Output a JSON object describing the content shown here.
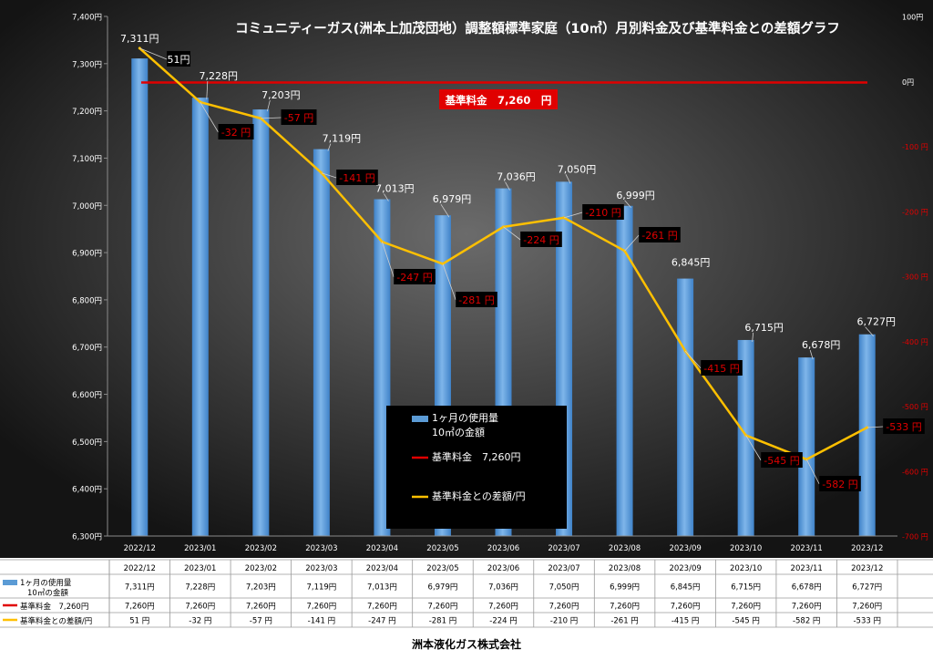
{
  "chart_data": {
    "type": "bar",
    "title": "コミュニティーガス(洲本上加茂団地）調整額標準家庭（10㎥）月別料金及び基準料金との差額グラフ",
    "categories": [
      "2022/12",
      "2023/01",
      "2023/02",
      "2023/03",
      "2023/04",
      "2023/05",
      "2023/06",
      "2023/07",
      "2023/08",
      "2023/09",
      "2023/10",
      "2023/11",
      "2023/12"
    ],
    "series": [
      {
        "name": "1ヶ月の使用量 10㎥の金額",
        "type": "bar",
        "axis": "left",
        "color": "#5b9bd5",
        "values": [
          7311,
          7228,
          7203,
          7119,
          7013,
          6979,
          7036,
          7050,
          6999,
          6845,
          6715,
          6678,
          6727
        ],
        "labels": [
          "7,311円",
          "7,228円",
          "7,203円",
          "7,119円",
          "7,013円",
          "6,979円",
          "7,036円",
          "7,050円",
          "6,999円",
          "6,845円",
          "6,715円",
          "6,678円",
          "6,727円"
        ]
      },
      {
        "name": "基準料金 7,260円",
        "type": "line",
        "axis": "left",
        "color": "#e00000",
        "values": [
          7260,
          7260,
          7260,
          7260,
          7260,
          7260,
          7260,
          7260,
          7260,
          7260,
          7260,
          7260,
          7260
        ],
        "labels": [
          "7,260円",
          "7,260円",
          "7,260円",
          "7,260円",
          "7,260円",
          "7,260円",
          "7,260円",
          "7,260円",
          "7,260円",
          "7,260円",
          "7,260円",
          "7,260円",
          "7,260円"
        ]
      },
      {
        "name": "基準料金との差額/円",
        "type": "line",
        "axis": "right",
        "color": "#ffc000",
        "values": [
          51,
          -32,
          -57,
          -141,
          -247,
          -281,
          -224,
          -210,
          -261,
          -415,
          -545,
          -582,
          -533
        ],
        "labels": [
          "51円",
          "-32 円",
          "-57 円",
          "-141 円",
          "-247 円",
          "-281 円",
          "-224 円",
          "-210 円",
          "-261 円",
          "-415 円",
          "-545 円",
          "-582 円",
          "-533 円"
        ]
      }
    ],
    "left_axis": {
      "ylim": [
        6300,
        7400
      ],
      "ticks": [
        "6,300円",
        "6,400円",
        "6,500円",
        "6,600円",
        "6,700円",
        "6,800円",
        "6,900円",
        "7,000円",
        "7,100円",
        "7,200円",
        "7,300円",
        "7,400円"
      ]
    },
    "right_axis": {
      "ylim": [
        -700,
        100
      ],
      "ticks": [
        "-700 円",
        "-600 円",
        "-500 円",
        "-400 円",
        "-300 円",
        "-200 円",
        "-100 円",
        "0円",
        "100円"
      ]
    },
    "chart_label_values": [
      "51円",
      "-32 円",
      "-57 円",
      "-141 円",
      "-247 円",
      "-281 円",
      "-224 円",
      "-210 円",
      "-261 円",
      "-415 円",
      "-545 円",
      "-582 円",
      "-533 円"
    ],
    "base_fee_badge": "基準料金　7,260　円",
    "legend": {
      "position": "center-bottom",
      "items": [
        {
          "label_lines": [
            "1ヶ月の使用量",
            "10㎥の金額"
          ],
          "color": "#5b9bd5",
          "kind": "bar"
        },
        {
          "label_lines": [
            "基準料金　7,260円"
          ],
          "color": "#e00000",
          "kind": "line"
        },
        {
          "label_lines": [
            "基準料金との差額/円"
          ],
          "color": "#ffc000",
          "kind": "line"
        }
      ]
    },
    "data_table": {
      "rows": [
        {
          "label_lines": [
            "1ヶ月の使用量",
            "10㎥の金額"
          ],
          "color": "#5b9bd5",
          "kind": "bar",
          "cells": [
            "7,311円",
            "7,228円",
            "7,203円",
            "7,119円",
            "7,013円",
            "6,979円",
            "7,036円",
            "7,050円",
            "6,999円",
            "6,845円",
            "6,715円",
            "6,678円",
            "6,727円"
          ]
        },
        {
          "label_lines": [
            "基準料金　7,260円"
          ],
          "color": "#e00000",
          "kind": "line",
          "cells": [
            "7,260円",
            "7,260円",
            "7,260円",
            "7,260円",
            "7,260円",
            "7,260円",
            "7,260円",
            "7,260円",
            "7,260円",
            "7,260円",
            "7,260円",
            "7,260円",
            "7,260円"
          ]
        },
        {
          "label_lines": [
            "基準料金との差額/円"
          ],
          "color": "#ffc000",
          "kind": "line",
          "cells": [
            "51 円",
            "-32 円",
            "-57 円",
            "-141 円",
            "-247 円",
            "-281 円",
            "-224 円",
            "-210 円",
            "-261 円",
            "-415 円",
            "-545 円",
            "-582 円",
            "-533 円"
          ]
        }
      ]
    },
    "grid": false
  },
  "footer": "洲本液化ガス株式会社"
}
